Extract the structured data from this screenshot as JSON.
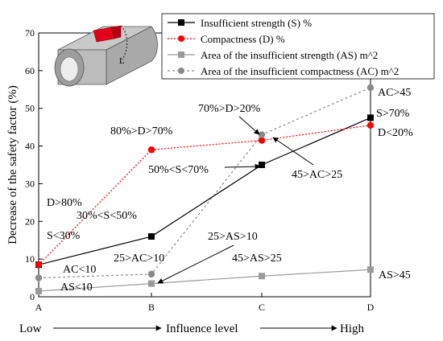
{
  "chart_data": {
    "type": "line",
    "categories": [
      "A",
      "B",
      "C",
      "D"
    ],
    "ylabel": "Decrease of the safety factor (%)",
    "ylim": [
      0,
      70
    ],
    "yticks": [
      0,
      10,
      20,
      30,
      40,
      50,
      60,
      70
    ],
    "grid": false,
    "legend_position": "top-right",
    "series": [
      {
        "name": "Insufficient strength (S) %",
        "values": [
          8.5,
          16,
          35,
          47.5
        ],
        "color": "#000000",
        "dash": "solid",
        "marker": "square"
      },
      {
        "name": "Compactness (D) %",
        "values": [
          8.5,
          39,
          41.5,
          45.5
        ],
        "color": "#ff0000",
        "dash": "dotted",
        "marker": "circle"
      },
      {
        "name": "Area of the insufficient strength (AS)  m^2",
        "values": [
          1.5,
          3.5,
          5.5,
          7.2
        ],
        "color": "#9a9a9a",
        "dash": "solid",
        "marker": "square"
      },
      {
        "name": "Area of the insufficient compactness (AC) m^2",
        "values": [
          5,
          6,
          43,
          55.5
        ],
        "color": "#8a8a8a",
        "dash": "dashed",
        "marker": "circle"
      }
    ],
    "annotations": {
      "d80": "D>80%",
      "s30": "S<30%",
      "ac10": "AC<10",
      "as10": "AS<10",
      "d7080": "80%>D>70%",
      "s3050": "30%<S<50%",
      "ac1025": "25>AC>10",
      "as1025": "25>AS>10",
      "d2070": "70%>D>20%",
      "s5070": "50%<S<70%",
      "ac2545": "45>AC>25",
      "as2545": "45>AS>25",
      "ac45": "AC>45",
      "s70": "S>70%",
      "d20": "D<20%",
      "as45": "AS>45"
    },
    "influence": {
      "low": "Low",
      "mid": "Influence level",
      "high": "High"
    },
    "inset_label": "L"
  }
}
